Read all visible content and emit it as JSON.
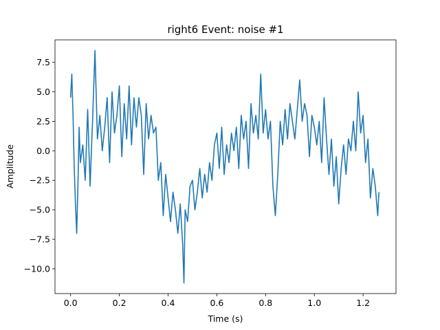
{
  "chart_data": {
    "type": "line",
    "title": "right6 Event: noise #1",
    "xlabel": "Time (s)",
    "ylabel": "Amplitude",
    "xlim": [
      -0.064,
      1.335
    ],
    "ylim": [
      -12.1,
      9.4
    ],
    "xticks": [
      0.0,
      0.2,
      0.4,
      0.6,
      0.8,
      1.0,
      1.2
    ],
    "xtick_labels": [
      "0.0",
      "0.2",
      "0.4",
      "0.6",
      "0.8",
      "1.0",
      "1.2"
    ],
    "yticks": [
      7.5,
      5.0,
      2.5,
      0.0,
      -2.5,
      -5.0,
      -7.5,
      -10.0
    ],
    "ytick_labels": [
      "7.5",
      "5.0",
      "2.5",
      "0.0",
      "−2.5",
      "−5.0",
      "−7.5",
      "−10.0"
    ],
    "grid": false,
    "series": [
      {
        "color": "#1f77b4",
        "x": [
          0.0,
          0.005,
          0.01,
          0.015,
          0.02,
          0.025,
          0.03,
          0.035,
          0.04,
          0.05,
          0.06,
          0.07,
          0.08,
          0.09,
          0.1,
          0.11,
          0.12,
          0.13,
          0.14,
          0.15,
          0.16,
          0.17,
          0.18,
          0.19,
          0.2,
          0.21,
          0.22,
          0.23,
          0.24,
          0.25,
          0.26,
          0.27,
          0.28,
          0.29,
          0.3,
          0.31,
          0.32,
          0.33,
          0.34,
          0.35,
          0.36,
          0.37,
          0.38,
          0.39,
          0.4,
          0.41,
          0.42,
          0.43,
          0.44,
          0.45,
          0.46,
          0.465,
          0.47,
          0.48,
          0.49,
          0.5,
          0.51,
          0.52,
          0.53,
          0.54,
          0.55,
          0.56,
          0.57,
          0.58,
          0.59,
          0.6,
          0.61,
          0.62,
          0.63,
          0.64,
          0.65,
          0.66,
          0.67,
          0.68,
          0.69,
          0.7,
          0.71,
          0.72,
          0.73,
          0.74,
          0.75,
          0.76,
          0.77,
          0.78,
          0.79,
          0.8,
          0.81,
          0.82,
          0.83,
          0.84,
          0.85,
          0.86,
          0.87,
          0.88,
          0.89,
          0.9,
          0.91,
          0.92,
          0.93,
          0.94,
          0.95,
          0.96,
          0.97,
          0.98,
          0.99,
          1.0,
          1.01,
          1.02,
          1.03,
          1.04,
          1.05,
          1.06,
          1.07,
          1.08,
          1.09,
          1.1,
          1.11,
          1.12,
          1.13,
          1.14,
          1.15,
          1.16,
          1.17,
          1.18,
          1.19,
          1.2,
          1.21,
          1.22,
          1.23,
          1.24,
          1.25,
          1.26,
          1.265
        ],
        "y": [
          4.5,
          6.5,
          3.0,
          -1.5,
          -4.5,
          -7.0,
          -3.0,
          2.0,
          -1.0,
          0.5,
          -2.5,
          3.5,
          -3.0,
          2.5,
          8.5,
          1.0,
          3.0,
          0.0,
          2.0,
          4.5,
          -1.0,
          5.0,
          1.5,
          3.0,
          5.5,
          -0.5,
          4.0,
          1.0,
          5.5,
          0.5,
          4.5,
          2.0,
          4.5,
          3.0,
          -2.0,
          4.0,
          1.0,
          3.0,
          1.5,
          2.0,
          -2.5,
          -1.0,
          -5.5,
          -2.0,
          -4.0,
          -6.0,
          -3.5,
          -5.0,
          -7.0,
          -4.5,
          -8.0,
          -11.2,
          -5.0,
          -6.0,
          -3.0,
          -2.5,
          -5.0,
          -3.5,
          -1.5,
          -4.0,
          -2.0,
          -3.5,
          -1.0,
          -2.5,
          0.5,
          1.5,
          -1.5,
          2.0,
          -2.0,
          0.5,
          -1.0,
          1.5,
          0.0,
          2.0,
          -1.5,
          3.0,
          1.0,
          2.5,
          -1.5,
          4.0,
          1.5,
          3.0,
          1.0,
          6.5,
          1.5,
          3.5,
          1.0,
          2.5,
          -3.0,
          -5.5,
          -2.0,
          2.5,
          0.5,
          3.5,
          1.0,
          4.0,
          2.5,
          1.0,
          3.5,
          6.0,
          2.5,
          4.0,
          3.0,
          -0.5,
          3.0,
          2.0,
          0.5,
          2.5,
          -1.0,
          4.5,
          1.0,
          -2.0,
          1.0,
          -3.0,
          -0.5,
          -4.5,
          -1.5,
          0.5,
          -2.0,
          1.0,
          0.0,
          2.5,
          0.0,
          5.0,
          1.5,
          3.0,
          -1.0,
          1.0,
          -4.0,
          -1.5,
          -3.0,
          -5.5,
          -3.5
        ]
      }
    ]
  }
}
